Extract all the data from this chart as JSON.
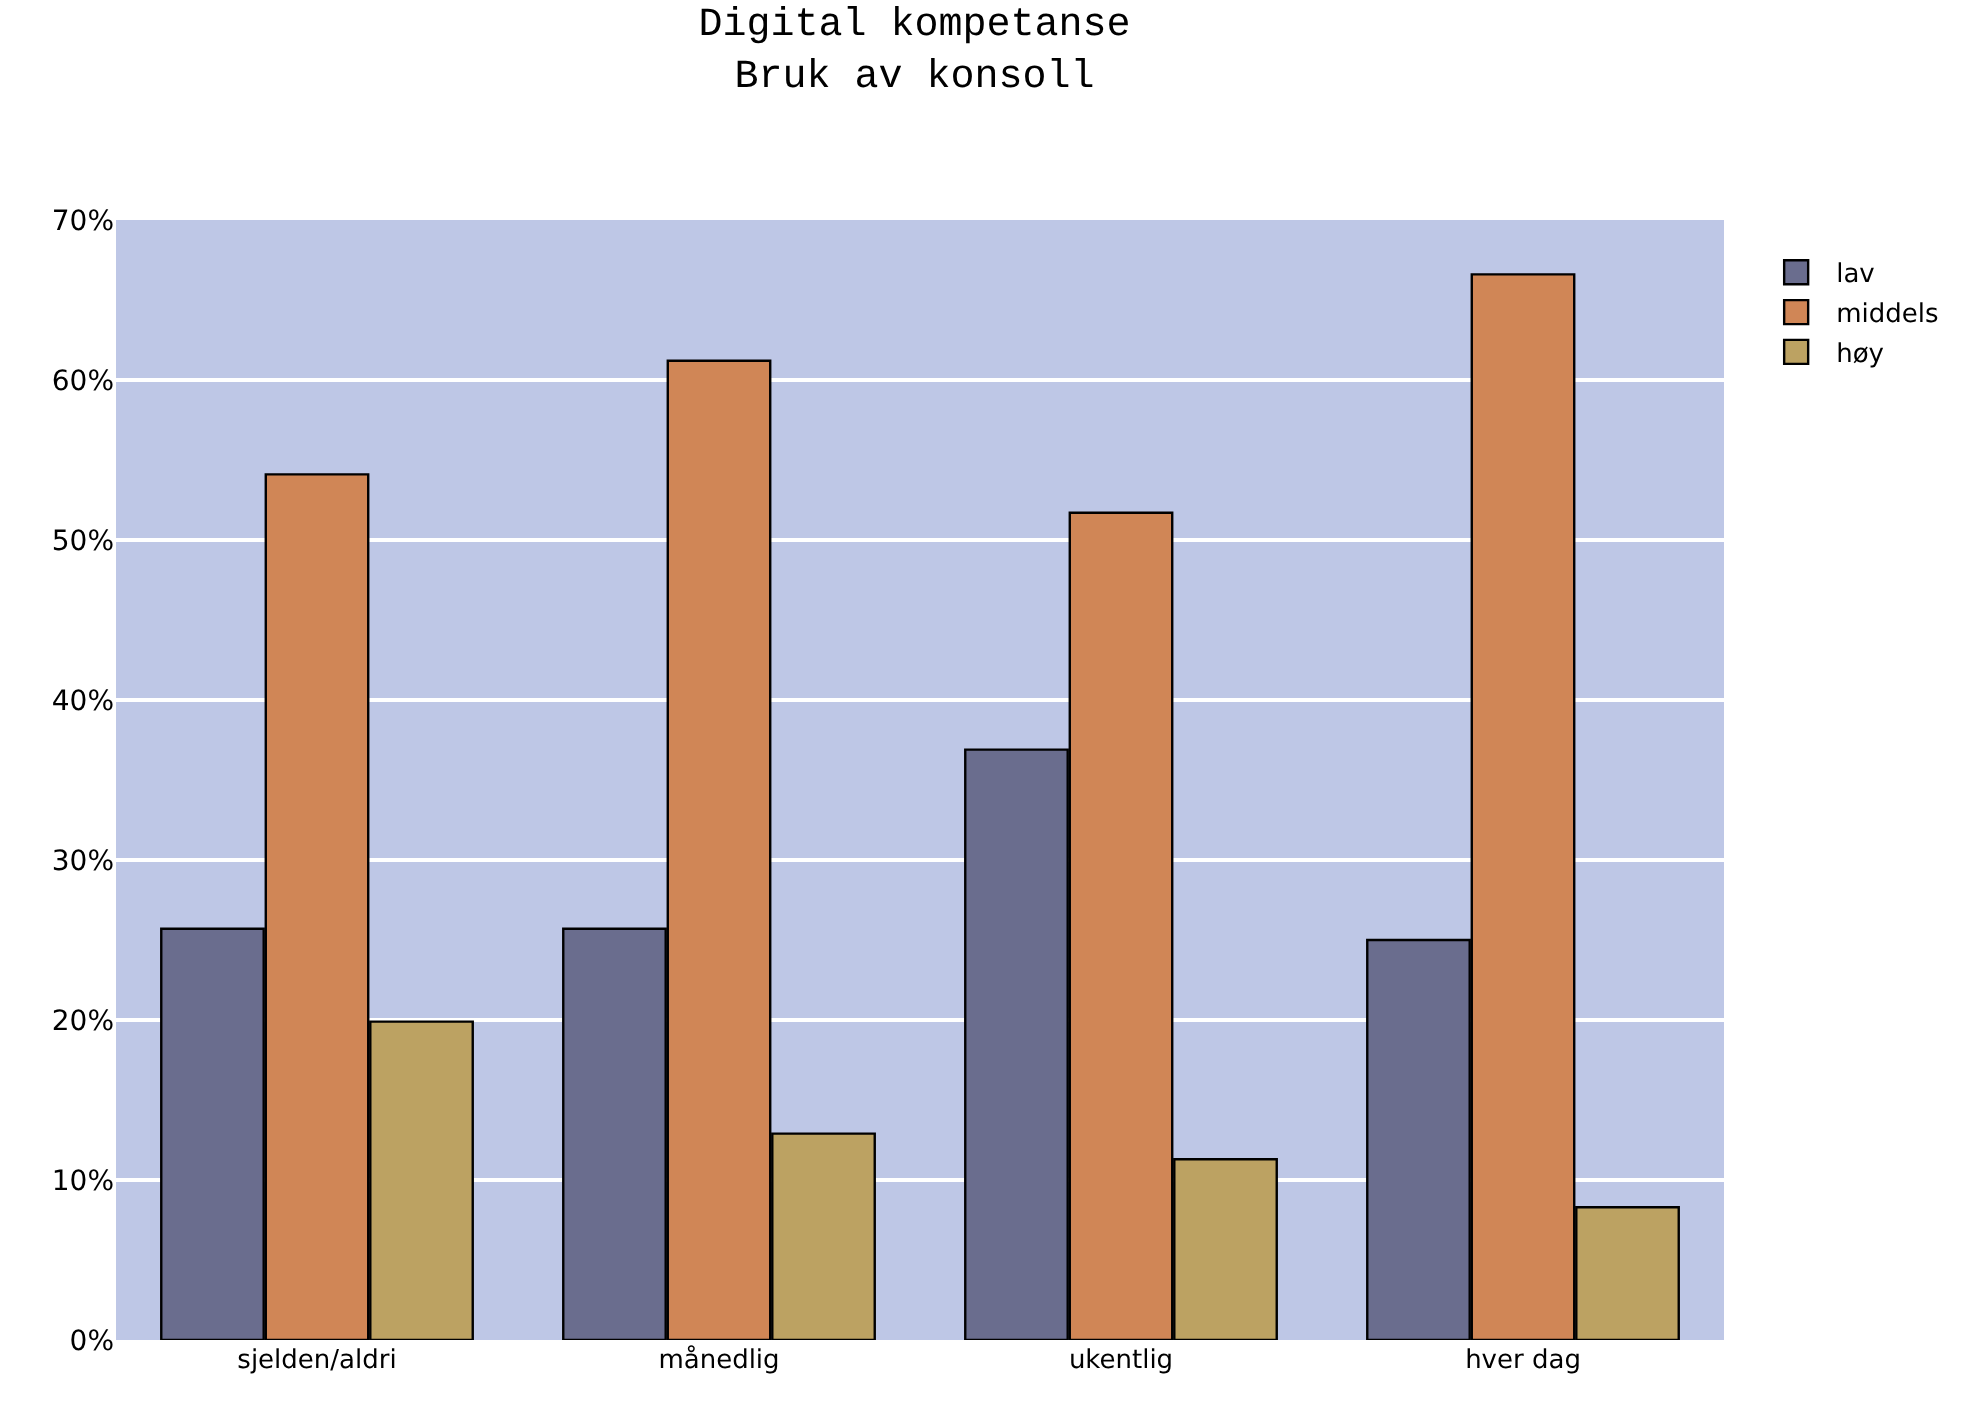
{
  "chart_data": {
    "type": "bar",
    "title": "Digital kompetanse\nBruk av konsoll",
    "categories": [
      "sjelden/aldri",
      "månedlig",
      "ukentlig",
      "hver dag"
    ],
    "series": [
      {
        "name": "lav",
        "color": "#6a6d8e",
        "values": [
          25.7,
          25.7,
          36.9,
          25.0
        ]
      },
      {
        "name": "middels",
        "color": "#d08656",
        "values": [
          54.1,
          61.2,
          51.7,
          66.6
        ]
      },
      {
        "name": "høy",
        "color": "#bca262",
        "values": [
          19.9,
          12.9,
          11.3,
          8.3
        ]
      }
    ],
    "ylim": [
      0,
      70
    ],
    "yticks": [
      {
        "value": 0,
        "label": "0%"
      },
      {
        "value": 10,
        "label": "10%"
      },
      {
        "value": 20,
        "label": "20%"
      },
      {
        "value": 30,
        "label": "30%"
      },
      {
        "value": 40,
        "label": "40%"
      },
      {
        "value": 50,
        "label": "50%"
      },
      {
        "value": 60,
        "label": "60%"
      },
      {
        "value": 70,
        "label": "70%"
      }
    ],
    "grid": "y",
    "legend": "top right"
  }
}
